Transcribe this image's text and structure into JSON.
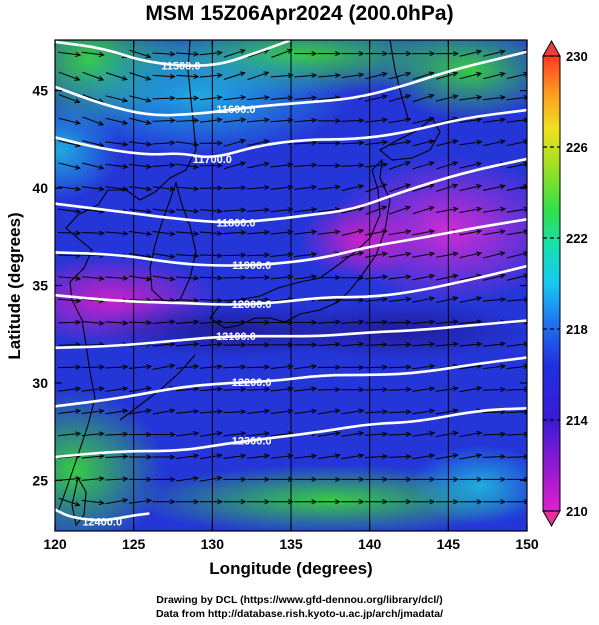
{
  "title": "MSM 15Z06Apr2024 (200.0hPa)",
  "map": {
    "lon_range": [
      120,
      150
    ],
    "lat_range": [
      22.4,
      47.6
    ],
    "x_ticks": [
      {
        "value": 120,
        "label": "120"
      },
      {
        "value": 125,
        "label": "125"
      },
      {
        "value": 130,
        "label": "130"
      },
      {
        "value": 135,
        "label": "135"
      },
      {
        "value": 140,
        "label": "140"
      },
      {
        "value": 145,
        "label": "145"
      },
      {
        "value": 150,
        "label": "150"
      }
    ],
    "y_ticks": [
      {
        "value": 25,
        "label": "25"
      },
      {
        "value": 30,
        "label": "30"
      },
      {
        "value": 35,
        "label": "35"
      },
      {
        "value": 40,
        "label": "40"
      },
      {
        "value": 45,
        "label": "45"
      }
    ],
    "xlabel": "Longitude (degrees)",
    "ylabel": "Latitude  (degrees)",
    "height_contours": [
      {
        "label": "11500.0",
        "label_lon": 128,
        "points": [
          [
            120,
            47.5
          ],
          [
            123,
            47.2
          ],
          [
            126,
            46.4
          ],
          [
            130,
            46.2
          ],
          [
            133,
            47.0
          ],
          [
            135,
            47.6
          ]
        ]
      },
      {
        "label": "11600.0",
        "label_lon": 131.5,
        "points": [
          [
            120,
            45.2
          ],
          [
            123,
            44.3
          ],
          [
            126,
            43.7
          ],
          [
            129,
            43.8
          ],
          [
            131,
            44.0
          ],
          [
            133,
            44.2
          ],
          [
            136,
            44.4
          ],
          [
            139,
            44.6
          ],
          [
            142,
            45.2
          ],
          [
            145,
            46.0
          ],
          [
            148,
            46.6
          ],
          [
            150,
            47.0
          ]
        ]
      },
      {
        "label": "11700.0",
        "label_lon": 130,
        "points": [
          [
            120,
            42.6
          ],
          [
            123,
            42.0
          ],
          [
            126,
            41.7
          ],
          [
            128,
            41.8
          ],
          [
            130,
            41.5
          ],
          [
            133,
            42.2
          ],
          [
            136,
            42.5
          ],
          [
            139,
            42.5
          ],
          [
            142,
            42.8
          ],
          [
            146,
            43.6
          ],
          [
            150,
            44.0
          ]
        ]
      },
      {
        "label": "11800.0",
        "label_lon": 131.5,
        "points": [
          [
            120,
            39.2
          ],
          [
            124,
            38.8
          ],
          [
            128,
            38.4
          ],
          [
            131,
            38.2
          ],
          [
            134,
            38.4
          ],
          [
            136,
            38.6
          ],
          [
            139,
            38.9
          ],
          [
            142,
            39.8
          ],
          [
            146,
            40.8
          ],
          [
            150,
            41.5
          ]
        ]
      },
      {
        "label": "11900.0",
        "label_lon": 132.5,
        "points": [
          [
            120,
            36.7
          ],
          [
            124,
            36.6
          ],
          [
            128,
            36.1
          ],
          [
            131,
            36.0
          ],
          [
            134,
            36.1
          ],
          [
            137,
            36.4
          ],
          [
            140,
            37.0
          ],
          [
            143,
            37.4
          ],
          [
            147,
            38.0
          ],
          [
            150,
            38.4
          ]
        ]
      },
      {
        "label": "12000.0",
        "label_lon": 132.5,
        "points": [
          [
            120,
            34.5
          ],
          [
            124,
            34.2
          ],
          [
            128,
            34.1
          ],
          [
            131,
            34.0
          ],
          [
            134,
            34.1
          ],
          [
            137,
            34.4
          ],
          [
            140,
            34.4
          ],
          [
            143,
            34.7
          ],
          [
            147,
            35.4
          ],
          [
            150,
            36.0
          ]
        ]
      },
      {
        "label": "12100.0",
        "label_lon": 131.5,
        "points": [
          [
            120,
            31.8
          ],
          [
            124,
            31.9
          ],
          [
            128,
            32.2
          ],
          [
            131,
            32.4
          ],
          [
            134,
            32.4
          ],
          [
            137,
            32.4
          ],
          [
            140,
            32.6
          ],
          [
            143,
            32.7
          ],
          [
            147,
            33.0
          ],
          [
            150,
            33.2
          ]
        ]
      },
      {
        "label": "12200.0",
        "label_lon": 132.5,
        "points": [
          [
            120,
            28.8
          ],
          [
            124,
            29.2
          ],
          [
            128,
            29.8
          ],
          [
            131,
            30.0
          ],
          [
            134,
            30.1
          ],
          [
            137,
            30.4
          ],
          [
            140,
            30.4
          ],
          [
            143,
            30.5
          ],
          [
            147,
            31.0
          ],
          [
            150,
            31.3
          ]
        ]
      },
      {
        "label": "12300.0",
        "label_lon": 132.5,
        "points": [
          [
            120,
            26.2
          ],
          [
            124,
            26.5
          ],
          [
            128,
            26.5
          ],
          [
            131,
            26.9
          ],
          [
            134,
            27.2
          ],
          [
            137,
            27.5
          ],
          [
            140,
            27.9
          ],
          [
            143,
            28.0
          ],
          [
            147,
            28.6
          ],
          [
            150,
            28.7
          ]
        ]
      },
      {
        "label": "12400.0",
        "label_lon": 123,
        "points": [
          [
            120,
            23.5
          ],
          [
            121,
            23.1
          ],
          [
            123,
            22.9
          ],
          [
            125,
            23.2
          ],
          [
            126,
            23.3
          ]
        ]
      }
    ]
  },
  "colorbar": {
    "min": 210,
    "max": 230,
    "tick_labels": [
      {
        "value": 210,
        "label": "210"
      },
      {
        "value": 214,
        "label": "214"
      },
      {
        "value": 218,
        "label": "218"
      },
      {
        "value": 222,
        "label": "222"
      },
      {
        "value": 226,
        "label": "226"
      },
      {
        "value": 230,
        "label": "230"
      }
    ],
    "colors": {
      "low": "#e01fd0",
      "mid_low": "#1f1fd9",
      "mid": "#16c9f0",
      "mid_high": "#2ee04a",
      "high": "#ff3a20"
    }
  },
  "footer": {
    "line1": "Drawing by DCL (https://www.gfd-dennou.org/library/dcl/)",
    "line2": "Data from http://database.rish.kyoto-u.ac.jp/arch/jmadata/"
  }
}
